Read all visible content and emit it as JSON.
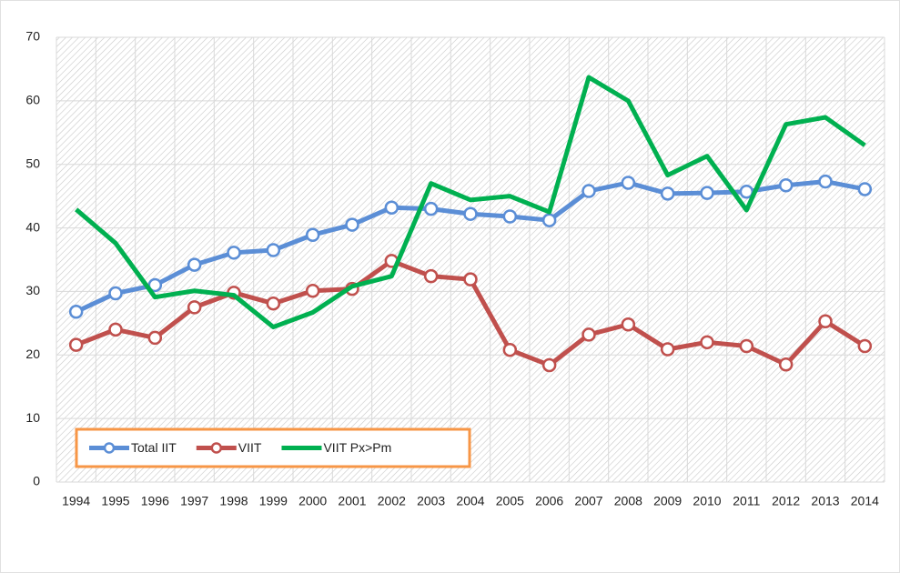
{
  "chart_data": {
    "type": "line",
    "categories": [
      "1994",
      "1995",
      "1996",
      "1997",
      "1998",
      "1999",
      "2000",
      "2001",
      "2002",
      "2003",
      "2004",
      "2005",
      "2006",
      "2007",
      "2008",
      "2009",
      "2010",
      "2011",
      "2012",
      "2013",
      "2014"
    ],
    "series": [
      {
        "name": "Total IIT",
        "color": "#5b8ed6",
        "markers": true,
        "values": [
          26.8,
          29.7,
          31.0,
          34.2,
          36.1,
          36.5,
          38.9,
          40.5,
          43.2,
          43.0,
          42.2,
          41.8,
          41.2,
          45.8,
          47.1,
          45.4,
          45.5,
          45.7,
          46.7,
          47.3,
          46.1
        ]
      },
      {
        "name": "VIIT",
        "color": "#c0504d",
        "markers": true,
        "values": [
          21.6,
          24.0,
          22.7,
          27.5,
          29.8,
          28.1,
          30.1,
          30.4,
          34.8,
          32.4,
          31.9,
          20.8,
          18.4,
          23.2,
          24.8,
          20.9,
          22.0,
          21.4,
          18.5,
          25.3,
          21.4
        ]
      },
      {
        "name": "VIIT Px>Pm",
        "color": "#00b050",
        "markers": false,
        "values": [
          42.9,
          37.6,
          29.1,
          30.1,
          29.4,
          24.4,
          26.7,
          30.8,
          32.4,
          47.0,
          44.4,
          45.0,
          42.5,
          63.7,
          60.0,
          48.3,
          51.3,
          42.8,
          56.3,
          57.4,
          53.0
        ]
      }
    ],
    "ylim": [
      0,
      70
    ],
    "yticks": [
      0,
      10,
      20,
      30,
      40,
      50,
      60,
      70
    ],
    "grid": true,
    "legend": "lower left"
  }
}
